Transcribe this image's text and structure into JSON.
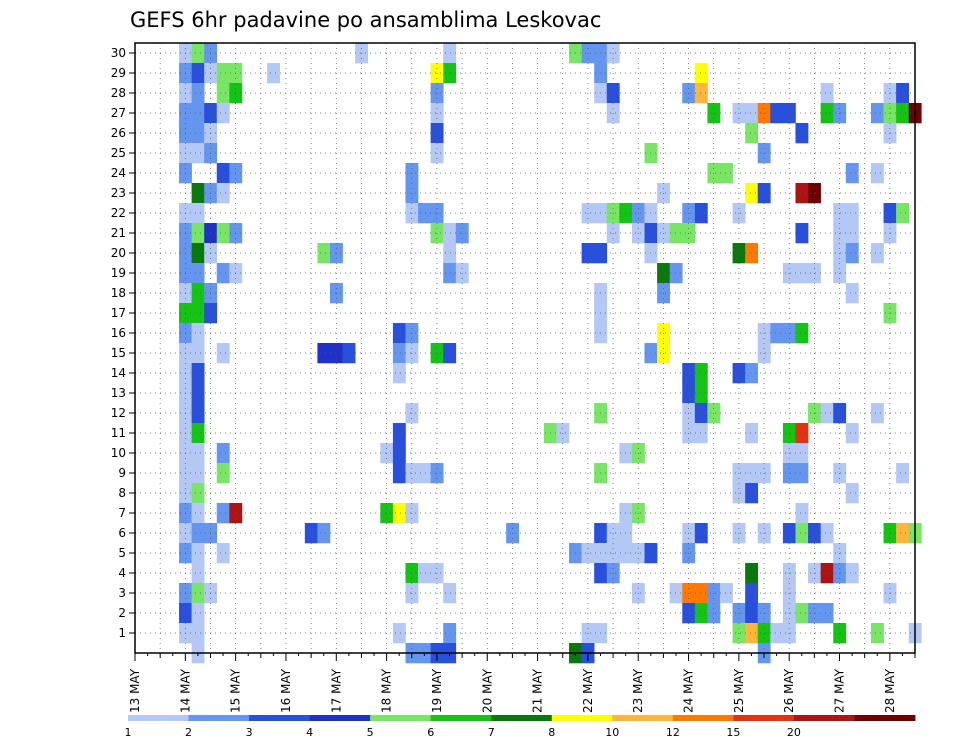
{
  "chart_data": {
    "type": "heatmap",
    "title": "GEFS 6hr padavine po ansamblima Leskovac",
    "x_ticks": [
      "13 MAY",
      "14 MAY",
      "15 MAY",
      "16 MAY",
      "17 MAY",
      "18 MAY",
      "19 MAY",
      "20 MAY",
      "21 MAY",
      "22 MAY",
      "23 MAY",
      "24 MAY",
      "25 MAY",
      "26 MAY",
      "27 MAY",
      "28 MAY"
    ],
    "y_ticks": [
      "1",
      "2",
      "3",
      "4",
      "5",
      "6",
      "7",
      "8",
      "9",
      "10",
      "11",
      "12",
      "13",
      "14",
      "15",
      "16",
      "17",
      "18",
      "19",
      "20",
      "21",
      "22",
      "23",
      "24",
      "25",
      "26",
      "27",
      "28",
      "29",
      "30"
    ],
    "grid": true,
    "legend": {
      "placement": "bottom",
      "labels": [
        "1",
        "2",
        "3",
        "4",
        "5",
        "6",
        "7",
        "8",
        "10",
        "12",
        "15",
        "20"
      ],
      "colors": [
        "#b4c8f5",
        "#6496f0",
        "#2850dc",
        "#1e32c8",
        "#78e664",
        "#14c314",
        "#0a780a",
        "#ffff00",
        "#ffb43c",
        "#ff7800",
        "#e13214",
        "#af1414",
        "#6e0000"
      ]
    },
    "cells_note": "Each cell: [day (days after 13 May 00Z), member, color class 0-12]",
    "cells": [
      [
        1.0,
        30,
        0
      ],
      [
        1.0,
        29,
        1
      ],
      [
        1.0,
        28,
        0
      ],
      [
        1.0,
        27,
        1
      ],
      [
        1.0,
        26,
        1
      ],
      [
        1.0,
        25,
        0
      ],
      [
        1.0,
        24,
        1
      ],
      [
        1.0,
        22,
        0
      ],
      [
        1.0,
        21,
        1
      ],
      [
        1.0,
        20,
        1
      ],
      [
        1.0,
        19,
        1
      ],
      [
        1.0,
        18,
        0
      ],
      [
        1.0,
        17,
        5
      ],
      [
        1.0,
        16,
        1
      ],
      [
        1.0,
        15,
        0
      ],
      [
        1.0,
        14,
        0
      ],
      [
        1.0,
        13,
        0
      ],
      [
        1.0,
        12,
        0
      ],
      [
        1.0,
        11,
        0
      ],
      [
        1.0,
        10,
        0
      ],
      [
        1.0,
        9,
        0
      ],
      [
        1.0,
        8,
        0
      ],
      [
        1.0,
        7,
        1
      ],
      [
        1.0,
        6,
        0
      ],
      [
        1.0,
        5,
        1
      ],
      [
        1.0,
        3,
        1
      ],
      [
        1.0,
        2,
        2
      ],
      [
        1.0,
        1,
        0
      ],
      [
        1.25,
        30,
        4
      ],
      [
        1.25,
        29,
        2
      ],
      [
        1.25,
        28,
        1
      ],
      [
        1.25,
        27,
        1
      ],
      [
        1.25,
        26,
        1
      ],
      [
        1.25,
        25,
        0
      ],
      [
        1.25,
        23,
        6
      ],
      [
        1.25,
        22,
        0
      ],
      [
        1.25,
        21,
        4
      ],
      [
        1.25,
        20,
        6
      ],
      [
        1.25,
        19,
        1
      ],
      [
        1.25,
        18,
        5
      ],
      [
        1.25,
        17,
        5
      ],
      [
        1.25,
        16,
        0
      ],
      [
        1.25,
        15,
        0
      ],
      [
        1.25,
        14,
        2
      ],
      [
        1.25,
        13,
        2
      ],
      [
        1.25,
        12,
        2
      ],
      [
        1.25,
        11,
        5
      ],
      [
        1.25,
        10,
        0
      ],
      [
        1.25,
        9,
        0
      ],
      [
        1.25,
        8,
        4
      ],
      [
        1.25,
        7,
        0
      ],
      [
        1.25,
        6,
        1
      ],
      [
        1.25,
        5,
        0
      ],
      [
        1.25,
        4,
        0
      ],
      [
        1.25,
        3,
        4
      ],
      [
        1.25,
        2,
        0
      ],
      [
        1.25,
        1,
        0
      ],
      [
        1.25,
        0,
        0
      ],
      [
        1.5,
        30,
        1
      ],
      [
        1.5,
        29,
        0
      ],
      [
        1.5,
        27,
        2
      ],
      [
        1.5,
        26,
        0
      ],
      [
        1.5,
        25,
        1
      ],
      [
        1.5,
        23,
        1
      ],
      [
        1.5,
        21,
        3
      ],
      [
        1.5,
        20,
        0
      ],
      [
        1.5,
        18,
        1
      ],
      [
        1.5,
        17,
        2
      ],
      [
        1.5,
        6,
        1
      ],
      [
        1.5,
        3,
        0
      ],
      [
        1.75,
        29,
        4
      ],
      [
        1.75,
        28,
        4
      ],
      [
        1.75,
        27,
        0
      ],
      [
        1.75,
        24,
        2
      ],
      [
        1.75,
        23,
        0
      ],
      [
        1.75,
        21,
        4
      ],
      [
        1.75,
        19,
        1
      ],
      [
        1.75,
        15,
        0
      ],
      [
        1.75,
        10,
        1
      ],
      [
        1.75,
        9,
        4
      ],
      [
        1.75,
        7,
        1
      ],
      [
        1.75,
        5,
        0
      ],
      [
        2.0,
        29,
        4
      ],
      [
        2.0,
        28,
        5
      ],
      [
        2.0,
        24,
        1
      ],
      [
        2.0,
        21,
        1
      ],
      [
        2.0,
        19,
        0
      ],
      [
        2.0,
        7,
        11
      ],
      [
        2.75,
        29,
        0
      ],
      [
        3.5,
        6,
        2
      ],
      [
        3.75,
        20,
        4
      ],
      [
        3.75,
        15,
        3
      ],
      [
        3.75,
        6,
        1
      ],
      [
        4.0,
        20,
        1
      ],
      [
        4.0,
        15,
        3
      ],
      [
        4.0,
        18,
        1
      ],
      [
        4.25,
        15,
        2
      ],
      [
        4.5,
        30,
        0
      ],
      [
        5.0,
        10,
        0
      ],
      [
        5.0,
        7,
        5
      ],
      [
        5.25,
        16,
        2
      ],
      [
        5.25,
        15,
        1
      ],
      [
        5.25,
        14,
        0
      ],
      [
        5.25,
        11,
        2
      ],
      [
        5.25,
        10,
        2
      ],
      [
        5.25,
        9,
        2
      ],
      [
        5.25,
        7,
        7
      ],
      [
        5.25,
        1,
        0
      ],
      [
        5.5,
        24,
        1
      ],
      [
        5.5,
        23,
        1
      ],
      [
        5.5,
        22,
        0
      ],
      [
        5.5,
        16,
        1
      ],
      [
        5.5,
        15,
        0
      ],
      [
        5.5,
        12,
        0
      ],
      [
        5.5,
        9,
        0
      ],
      [
        5.5,
        7,
        0
      ],
      [
        5.5,
        4,
        5
      ],
      [
        5.5,
        3,
        0
      ],
      [
        5.5,
        0,
        1
      ],
      [
        5.75,
        22,
        1
      ],
      [
        5.75,
        9,
        0
      ],
      [
        5.75,
        4,
        0
      ],
      [
        5.75,
        0,
        1
      ],
      [
        6.0,
        29,
        7
      ],
      [
        6.0,
        28,
        1
      ],
      [
        6.0,
        27,
        0
      ],
      [
        6.0,
        26,
        2
      ],
      [
        6.0,
        25,
        0
      ],
      [
        6.0,
        22,
        1
      ],
      [
        6.0,
        21,
        4
      ],
      [
        6.0,
        15,
        5
      ],
      [
        6.0,
        9,
        1
      ],
      [
        6.0,
        4,
        0
      ],
      [
        6.0,
        0,
        2
      ],
      [
        6.25,
        30,
        0
      ],
      [
        6.25,
        29,
        5
      ],
      [
        6.25,
        21,
        0
      ],
      [
        6.25,
        20,
        0
      ],
      [
        6.25,
        19,
        1
      ],
      [
        6.25,
        15,
        2
      ],
      [
        6.25,
        3,
        0
      ],
      [
        6.25,
        1,
        1
      ],
      [
        6.25,
        0,
        2
      ],
      [
        6.5,
        21,
        1
      ],
      [
        6.5,
        19,
        0
      ],
      [
        7.5,
        6,
        1
      ],
      [
        8.25,
        11,
        4
      ],
      [
        8.5,
        11,
        0
      ],
      [
        8.75,
        30,
        4
      ],
      [
        8.75,
        5,
        1
      ],
      [
        8.75,
        0,
        6
      ],
      [
        9.0,
        30,
        1
      ],
      [
        9.0,
        22,
        0
      ],
      [
        9.0,
        20,
        2
      ],
      [
        9.0,
        5,
        0
      ],
      [
        9.0,
        1,
        0
      ],
      [
        9.0,
        0,
        2
      ],
      [
        9.25,
        30,
        1
      ],
      [
        9.25,
        29,
        1
      ],
      [
        9.25,
        28,
        0
      ],
      [
        9.25,
        22,
        0
      ],
      [
        9.25,
        20,
        2
      ],
      [
        9.25,
        18,
        0
      ],
      [
        9.25,
        17,
        0
      ],
      [
        9.25,
        16,
        0
      ],
      [
        9.25,
        12,
        4
      ],
      [
        9.25,
        9,
        4
      ],
      [
        9.25,
        6,
        2
      ],
      [
        9.25,
        5,
        0
      ],
      [
        9.25,
        4,
        2
      ],
      [
        9.25,
        1,
        0
      ],
      [
        9.5,
        30,
        0
      ],
      [
        9.5,
        28,
        2
      ],
      [
        9.5,
        27,
        0
      ],
      [
        9.5,
        22,
        4
      ],
      [
        9.5,
        21,
        0
      ],
      [
        9.5,
        6,
        0
      ],
      [
        9.5,
        5,
        0
      ],
      [
        9.5,
        4,
        1
      ],
      [
        9.75,
        22,
        5
      ],
      [
        9.75,
        10,
        0
      ],
      [
        9.75,
        7,
        0
      ],
      [
        9.75,
        6,
        0
      ],
      [
        9.75,
        5,
        0
      ],
      [
        10.0,
        22,
        1
      ],
      [
        10.0,
        21,
        0
      ],
      [
        10.0,
        10,
        4
      ],
      [
        10.0,
        7,
        4
      ],
      [
        10.0,
        5,
        0
      ],
      [
        10.0,
        3,
        0
      ],
      [
        10.25,
        25,
        4
      ],
      [
        10.25,
        22,
        0
      ],
      [
        10.25,
        21,
        2
      ],
      [
        10.25,
        20,
        0
      ],
      [
        10.25,
        15,
        1
      ],
      [
        10.25,
        5,
        2
      ],
      [
        10.5,
        23,
        0
      ],
      [
        10.5,
        21,
        0
      ],
      [
        10.5,
        19,
        6
      ],
      [
        10.5,
        18,
        1
      ],
      [
        10.5,
        16,
        7
      ],
      [
        10.5,
        15,
        7
      ],
      [
        10.75,
        19,
        1
      ],
      [
        10.75,
        21,
        4
      ],
      [
        10.75,
        3,
        0
      ],
      [
        11.0,
        28,
        1
      ],
      [
        11.0,
        22,
        1
      ],
      [
        11.0,
        21,
        4
      ],
      [
        11.0,
        14,
        2
      ],
      [
        11.0,
        13,
        2
      ],
      [
        11.0,
        12,
        0
      ],
      [
        11.0,
        11,
        0
      ],
      [
        11.0,
        6,
        0
      ],
      [
        11.0,
        5,
        1
      ],
      [
        11.0,
        3,
        9
      ],
      [
        11.0,
        2,
        2
      ],
      [
        11.25,
        29,
        7
      ],
      [
        11.25,
        28,
        8
      ],
      [
        11.25,
        22,
        2
      ],
      [
        11.25,
        14,
        5
      ],
      [
        11.25,
        13,
        5
      ],
      [
        11.25,
        12,
        2
      ],
      [
        11.25,
        11,
        0
      ],
      [
        11.25,
        6,
        2
      ],
      [
        11.25,
        3,
        9
      ],
      [
        11.25,
        2,
        5
      ],
      [
        11.5,
        27,
        5
      ],
      [
        11.5,
        24,
        4
      ],
      [
        11.5,
        12,
        4
      ],
      [
        11.5,
        3,
        1
      ],
      [
        11.5,
        2,
        1
      ],
      [
        11.75,
        24,
        4
      ],
      [
        11.75,
        3,
        0
      ],
      [
        12.0,
        27,
        0
      ],
      [
        12.0,
        22,
        0
      ],
      [
        12.0,
        20,
        6
      ],
      [
        12.0,
        14,
        2
      ],
      [
        12.0,
        9,
        0
      ],
      [
        12.0,
        8,
        0
      ],
      [
        12.0,
        6,
        0
      ],
      [
        12.0,
        2,
        1
      ],
      [
        12.0,
        1,
        4
      ],
      [
        12.25,
        27,
        0
      ],
      [
        12.25,
        26,
        4
      ],
      [
        12.25,
        23,
        7
      ],
      [
        12.25,
        20,
        9
      ],
      [
        12.25,
        14,
        1
      ],
      [
        12.25,
        11,
        0
      ],
      [
        12.25,
        9,
        0
      ],
      [
        12.25,
        8,
        2
      ],
      [
        12.25,
        4,
        6
      ],
      [
        12.25,
        3,
        2
      ],
      [
        12.25,
        2,
        2
      ],
      [
        12.25,
        1,
        8
      ],
      [
        12.5,
        27,
        9
      ],
      [
        12.5,
        25,
        1
      ],
      [
        12.5,
        23,
        2
      ],
      [
        12.5,
        16,
        0
      ],
      [
        12.5,
        15,
        0
      ],
      [
        12.5,
        9,
        0
      ],
      [
        12.5,
        6,
        0
      ],
      [
        12.5,
        2,
        1
      ],
      [
        12.5,
        1,
        5
      ],
      [
        12.5,
        0,
        1
      ],
      [
        12.75,
        27,
        2
      ],
      [
        12.75,
        16,
        1
      ],
      [
        12.75,
        1,
        0
      ],
      [
        13.0,
        27,
        2
      ],
      [
        13.0,
        19,
        0
      ],
      [
        13.0,
        16,
        1
      ],
      [
        13.0,
        11,
        5
      ],
      [
        13.0,
        10,
        0
      ],
      [
        13.0,
        9,
        1
      ],
      [
        13.0,
        6,
        2
      ],
      [
        13.0,
        4,
        0
      ],
      [
        13.0,
        3,
        0
      ],
      [
        13.0,
        2,
        0
      ],
      [
        13.0,
        1,
        0
      ],
      [
        13.25,
        26,
        2
      ],
      [
        13.25,
        23,
        11
      ],
      [
        13.25,
        21,
        2
      ],
      [
        13.25,
        19,
        0
      ],
      [
        13.25,
        16,
        5
      ],
      [
        13.25,
        11,
        10
      ],
      [
        13.25,
        10,
        0
      ],
      [
        13.25,
        9,
        1
      ],
      [
        13.25,
        7,
        0
      ],
      [
        13.25,
        6,
        4
      ],
      [
        13.25,
        2,
        4
      ],
      [
        13.5,
        23,
        12
      ],
      [
        13.5,
        19,
        0
      ],
      [
        13.5,
        12,
        4
      ],
      [
        13.5,
        6,
        2
      ],
      [
        13.5,
        4,
        0
      ],
      [
        13.5,
        2,
        1
      ],
      [
        13.75,
        28,
        0
      ],
      [
        13.75,
        27,
        5
      ],
      [
        13.75,
        12,
        0
      ],
      [
        13.75,
        6,
        0
      ],
      [
        13.75,
        4,
        11
      ],
      [
        13.75,
        2,
        1
      ],
      [
        14.0,
        27,
        1
      ],
      [
        14.0,
        22,
        0
      ],
      [
        14.0,
        21,
        0
      ],
      [
        14.0,
        20,
        0
      ],
      [
        14.0,
        19,
        0
      ],
      [
        14.0,
        12,
        2
      ],
      [
        14.0,
        9,
        0
      ],
      [
        14.0,
        5,
        0
      ],
      [
        14.0,
        4,
        1
      ],
      [
        14.0,
        1,
        5
      ],
      [
        14.25,
        24,
        1
      ],
      [
        14.25,
        22,
        0
      ],
      [
        14.25,
        21,
        0
      ],
      [
        14.25,
        20,
        1
      ],
      [
        14.25,
        18,
        0
      ],
      [
        14.25,
        11,
        0
      ],
      [
        14.25,
        8,
        0
      ],
      [
        14.25,
        4,
        0
      ],
      [
        14.75,
        27,
        1
      ],
      [
        14.75,
        24,
        0
      ],
      [
        14.75,
        20,
        0
      ],
      [
        14.75,
        12,
        0
      ],
      [
        14.75,
        1,
        4
      ],
      [
        15.0,
        28,
        0
      ],
      [
        15.0,
        27,
        4
      ],
      [
        15.0,
        26,
        0
      ],
      [
        15.0,
        22,
        2
      ],
      [
        15.0,
        21,
        0
      ],
      [
        15.0,
        17,
        4
      ],
      [
        15.0,
        6,
        5
      ],
      [
        15.0,
        3,
        0
      ],
      [
        15.25,
        28,
        2
      ],
      [
        15.25,
        27,
        5
      ],
      [
        15.25,
        22,
        4
      ],
      [
        15.25,
        9,
        0
      ],
      [
        15.25,
        6,
        8
      ],
      [
        15.5,
        27,
        12
      ],
      [
        15.5,
        6,
        4
      ],
      [
        15.5,
        1,
        0
      ]
    ]
  }
}
